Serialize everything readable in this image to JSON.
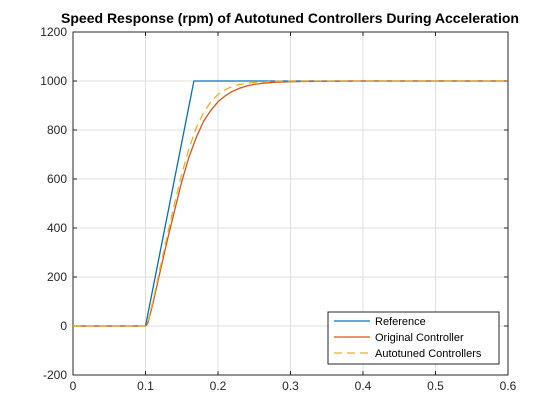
{
  "chart_data": {
    "type": "line",
    "title": "Speed Response (rpm) of Autotuned Controllers During Acceleration",
    "xlabel": "",
    "ylabel": "",
    "xlim": [
      0,
      0.6
    ],
    "ylim": [
      -200,
      1200
    ],
    "x_ticks": [
      0,
      0.1,
      0.2,
      0.3,
      0.4,
      0.5,
      0.6
    ],
    "x_tick_labels": [
      "0",
      "0.1",
      "0.2",
      "0.3",
      "0.4",
      "0.5",
      "0.6"
    ],
    "y_ticks": [
      -200,
      0,
      200,
      400,
      600,
      800,
      1000,
      1200
    ],
    "y_tick_labels": [
      "-200",
      "0",
      "200",
      "400",
      "600",
      "800",
      "1000",
      "1200"
    ],
    "grid": true,
    "legend_position": "bottom-right",
    "series": [
      {
        "name": "Reference",
        "color": "#0072BD",
        "dash": "solid",
        "x": [
          0,
          0.1,
          0.1667,
          0.6
        ],
        "y": [
          0,
          0,
          1000,
          1000
        ]
      },
      {
        "name": "Original Controller",
        "color": "#D95319",
        "dash": "solid",
        "x": [
          0,
          0.1,
          0.103,
          0.11,
          0.12,
          0.13,
          0.14,
          0.15,
          0.16,
          0.17,
          0.18,
          0.19,
          0.2,
          0.21,
          0.22,
          0.23,
          0.24,
          0.25,
          0.26,
          0.27,
          0.28,
          0.3,
          0.32,
          0.35,
          0.4,
          0.45,
          0.5,
          0.55,
          0.6
        ],
        "y": [
          0,
          0,
          10,
          90,
          220,
          350,
          470,
          590,
          690,
          770,
          835,
          880,
          915,
          940,
          958,
          971,
          980,
          986,
          990,
          993,
          995,
          997,
          998,
          999,
          1000,
          1000,
          1000,
          1000,
          1000
        ]
      },
      {
        "name": "Autotuned Controllers",
        "color": "#EDB120",
        "dash": "dashed",
        "x": [
          0,
          0.1,
          0.103,
          0.11,
          0.12,
          0.13,
          0.14,
          0.15,
          0.16,
          0.17,
          0.18,
          0.19,
          0.2,
          0.21,
          0.22,
          0.23,
          0.24,
          0.25,
          0.26,
          0.27,
          0.28,
          0.3,
          0.35,
          0.4,
          0.5,
          0.6
        ],
        "y": [
          0,
          0,
          15,
          100,
          235,
          370,
          500,
          620,
          725,
          810,
          870,
          915,
          945,
          965,
          978,
          986,
          991,
          994,
          996,
          998,
          999,
          1000,
          1000,
          1000,
          1000,
          1000
        ]
      }
    ]
  }
}
